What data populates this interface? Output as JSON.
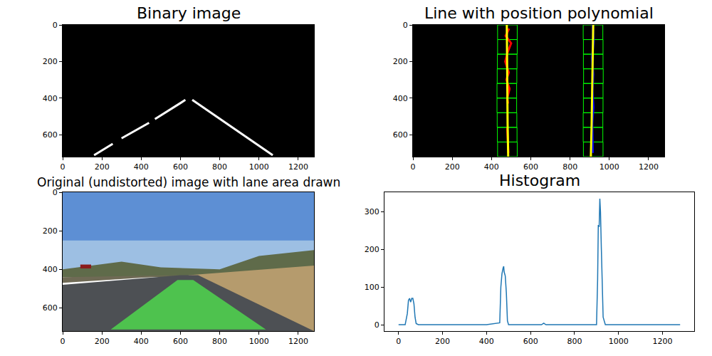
{
  "chart_data": [
    {
      "type": "image",
      "title": "Binary image",
      "xlim": [
        0,
        1280
      ],
      "ylim": [
        720,
        0
      ],
      "xticks": [
        0,
        200,
        400,
        600,
        800,
        1000,
        1200
      ],
      "yticks": [
        0,
        200,
        400,
        600
      ],
      "regions": [
        {
          "x": [
            0,
            1280,
            1280,
            0
          ],
          "y": [
            0,
            0,
            720,
            720
          ],
          "color": "#000000"
        }
      ],
      "series": [
        {
          "color": "#ffffff",
          "x": [
            160,
            255,
            null,
            300,
            440,
            null,
            470,
            625
          ],
          "values": [
            712,
            650,
            null,
            620,
            535,
            null,
            515,
            410
          ]
        },
        {
          "color": "#ffffff",
          "x": [
            1070,
            660
          ],
          "values": [
            712,
            410
          ]
        }
      ]
    },
    {
      "type": "image",
      "title": "Line with position polynomial",
      "xlim": [
        0,
        1280
      ],
      "ylim": [
        720,
        0
      ],
      "xticks": [
        0,
        200,
        400,
        600,
        800,
        1000,
        1200
      ],
      "yticks": [
        0,
        200,
        400,
        600
      ],
      "regions": [
        {
          "x": [
            0,
            1280,
            1280,
            0
          ],
          "y": [
            0,
            0,
            720,
            720
          ],
          "color": "#000000"
        }
      ],
      "windows": {
        "color": "#00ff00",
        "boxes": [
          [
            431,
            531,
            640,
            720
          ],
          [
            430,
            530,
            560,
            640
          ],
          [
            429,
            529,
            480,
            560
          ],
          [
            428,
            528,
            400,
            480
          ],
          [
            428,
            528,
            320,
            400
          ],
          [
            429,
            529,
            240,
            320
          ],
          [
            430,
            530,
            160,
            240
          ],
          [
            431,
            531,
            80,
            160
          ],
          [
            431,
            531,
            0,
            80
          ],
          [
            868,
            968,
            640,
            720
          ],
          [
            867,
            967,
            560,
            640
          ],
          [
            867,
            967,
            480,
            560
          ],
          [
            868,
            968,
            400,
            480
          ],
          [
            868,
            968,
            320,
            400
          ],
          [
            869,
            969,
            240,
            320
          ],
          [
            868,
            968,
            160,
            240
          ],
          [
            868,
            968,
            80,
            160
          ],
          [
            867,
            967,
            0,
            80
          ]
        ]
      },
      "series": [
        {
          "color": "#ff0000",
          "x": [
            490,
            472,
            500,
            482,
            470,
            488,
            476,
            492,
            480,
            484,
            null,
            480,
            486
          ],
          "values": [
            20,
            60,
            100,
            150,
            200,
            260,
            300,
            350,
            400,
            430,
            null,
            560,
            700
          ]
        },
        {
          "color": "#0000ff",
          "x": [
            915,
            920,
            912,
            918,
            914,
            919,
            913,
            916
          ],
          "values": [
            0,
            90,
            180,
            270,
            360,
            450,
            540,
            700
          ]
        },
        {
          "color": "#ffff00",
          "x": [
            478,
            479,
            480,
            482,
            485
          ],
          "values": [
            0,
            180,
            360,
            540,
            720
          ]
        },
        {
          "color": "#ffff00",
          "x": [
            918,
            916,
            913,
            910,
            906
          ],
          "values": [
            0,
            180,
            360,
            540,
            720
          ]
        }
      ]
    },
    {
      "type": "image",
      "title": "Original (undistorted) image with lane area drawn",
      "xlim": [
        0,
        1280
      ],
      "ylim": [
        720,
        0
      ],
      "xticks": [
        0,
        200,
        400,
        600,
        800,
        1000,
        1200
      ],
      "yticks": [
        0,
        200,
        400,
        600
      ],
      "regions": [
        {
          "x": [
            0,
            1280,
            1280,
            0
          ],
          "y": [
            0,
            0,
            400,
            400
          ],
          "color": "#5d8fd4"
        },
        {
          "x": [
            0,
            1280,
            1280,
            0
          ],
          "y": [
            250,
            250,
            400,
            400
          ],
          "color": "#9dbfe3"
        },
        {
          "x": [
            0,
            300,
            500,
            800,
            1000,
            1280,
            1280,
            0
          ],
          "y": [
            400,
            360,
            390,
            400,
            330,
            300,
            440,
            440
          ],
          "color": "#5f6b4a"
        },
        {
          "x": [
            0,
            600,
            0
          ],
          "y": [
            440,
            430,
            470
          ],
          "color": "#6f6a55"
        },
        {
          "x": [
            640,
            1280,
            1280,
            1020
          ],
          "y": [
            430,
            380,
            720,
            720
          ],
          "color": "#b59b6d"
        },
        {
          "x": [
            0,
            600,
            690,
            1280,
            0
          ],
          "y": [
            480,
            430,
            430,
            720,
            720
          ],
          "color": "#4d5054"
        },
        {
          "x": [
            90,
            145,
            145,
            90
          ],
          "y": [
            375,
            375,
            395,
            395
          ],
          "color": "#8b1c1c"
        },
        {
          "x": [
            245,
            1035,
            665,
            585
          ],
          "y": [
            712,
            712,
            455,
            455
          ],
          "color": "#4ec24e"
        }
      ],
      "series": []
    },
    {
      "type": "line",
      "title": "Histogram",
      "xlim": [
        -64,
        1344
      ],
      "ylim": [
        -17,
        352
      ],
      "xticks": [
        0,
        200,
        400,
        600,
        800,
        1000,
        1200
      ],
      "yticks": [
        0,
        100,
        200,
        300
      ],
      "series": [
        {
          "color": "#1f77b4",
          "x": [
            0,
            30,
            40,
            45,
            50,
            55,
            60,
            65,
            70,
            75,
            80,
            90,
            400,
            460,
            465,
            470,
            475,
            478,
            480,
            485,
            490,
            495,
            500,
            600,
            650,
            660,
            670,
            900,
            905,
            908,
            912,
            915,
            918,
            922,
            926,
            930,
            940,
            1000,
            1280
          ],
          "values": [
            0,
            0,
            30,
            65,
            70,
            60,
            70,
            70,
            55,
            20,
            3,
            0,
            0,
            5,
            100,
            135,
            150,
            155,
            140,
            130,
            85,
            10,
            0,
            0,
            0,
            4,
            0,
            0,
            120,
            265,
            260,
            335,
            300,
            200,
            120,
            20,
            0,
            0,
            0
          ]
        }
      ]
    }
  ]
}
